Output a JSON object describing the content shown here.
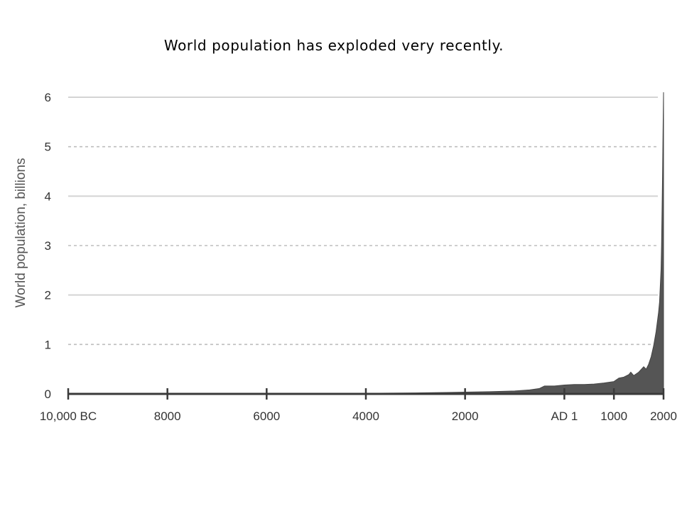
{
  "slide": {
    "title": "World population has exploded very recently."
  },
  "chart_data": {
    "type": "area",
    "title": "",
    "xlabel": "",
    "ylabel": "World population, billions",
    "xlim": [
      -10000,
      2000
    ],
    "ylim": [
      0,
      6
    ],
    "grid": "horizontal",
    "x_ticks": [
      {
        "value": -10000,
        "label": "10,000 BC"
      },
      {
        "value": -8000,
        "label": "8000"
      },
      {
        "value": -6000,
        "label": "6000"
      },
      {
        "value": -4000,
        "label": "4000"
      },
      {
        "value": -2000,
        "label": "2000"
      },
      {
        "value": 1,
        "label": "AD 1"
      },
      {
        "value": 1000,
        "label": "1000"
      },
      {
        "value": 2000,
        "label": "2000"
      }
    ],
    "y_ticks": [
      {
        "value": 0,
        "label": "0"
      },
      {
        "value": 1,
        "label": "1"
      },
      {
        "value": 2,
        "label": "2"
      },
      {
        "value": 3,
        "label": "3"
      },
      {
        "value": 4,
        "label": "4"
      },
      {
        "value": 5,
        "label": "5"
      },
      {
        "value": 6,
        "label": "6"
      }
    ],
    "series": [
      {
        "color": "#555555",
        "x": [
          -10000,
          -8000,
          -6000,
          -5000,
          -4000,
          -3000,
          -2000,
          -1500,
          -1000,
          -700,
          -500,
          -400,
          -200,
          1,
          200,
          400,
          600,
          800,
          1000,
          1100,
          1200,
          1300,
          1340,
          1400,
          1500,
          1600,
          1650,
          1700,
          1750,
          1800,
          1850,
          1900,
          1920,
          1940,
          1950,
          1960,
          1970,
          1980,
          1990,
          2000
        ],
        "y": [
          0.004,
          0.005,
          0.007,
          0.009,
          0.012,
          0.02,
          0.035,
          0.045,
          0.06,
          0.08,
          0.11,
          0.16,
          0.16,
          0.18,
          0.19,
          0.19,
          0.2,
          0.22,
          0.25,
          0.32,
          0.34,
          0.39,
          0.44,
          0.37,
          0.44,
          0.55,
          0.5,
          0.6,
          0.75,
          0.97,
          1.26,
          1.65,
          1.86,
          2.3,
          2.52,
          3.0,
          3.7,
          4.4,
          5.3,
          6.1
        ]
      }
    ]
  }
}
